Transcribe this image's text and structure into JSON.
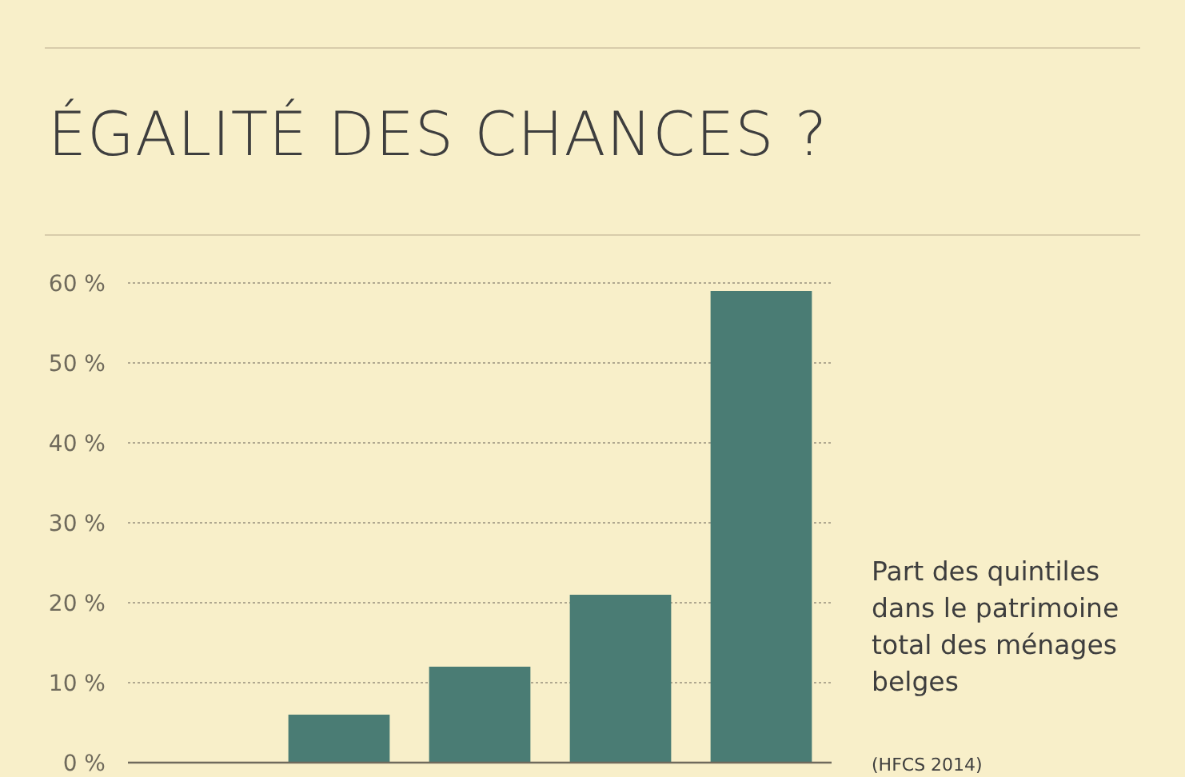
{
  "chart_data": {
    "type": "bar",
    "title": "ÉGALITÉ DES CHANCES ?",
    "categories": [
      null,
      null,
      null,
      null,
      null
    ],
    "values": [
      0,
      6,
      12,
      21,
      59
    ],
    "color": "#4a7c74",
    "ylim": [
      0,
      60
    ],
    "yticks": [
      {
        "value": 0,
        "label": "0 %"
      },
      {
        "value": 10,
        "label": "10 %"
      },
      {
        "value": 20,
        "label": "20 %"
      },
      {
        "value": 30,
        "label": "30 %"
      },
      {
        "value": 40,
        "label": "40 %"
      },
      {
        "value": 50,
        "label": "50 %"
      },
      {
        "value": 60,
        "label": "60 %"
      }
    ],
    "grid": "y",
    "annotations": [
      "Part des quintiles dans le patrimoine total des ménages belges",
      "(HFCS 2014)"
    ]
  }
}
